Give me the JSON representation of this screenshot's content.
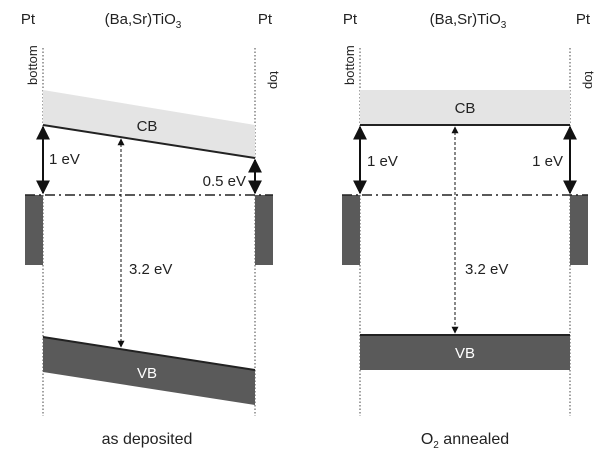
{
  "panels": [
    {
      "left_electrode": "Pt",
      "film": {
        "text": "(Ba,Sr)TiO",
        "sub": "3"
      },
      "right_electrode": "Pt",
      "left_interface": "bottom",
      "right_interface": "top",
      "conduction_band": "CB",
      "valence_band": "VB",
      "left_barrier": "1 eV",
      "right_barrier": "0.5 eV",
      "band_gap": "3.2 eV",
      "caption": {
        "text": "as deposited"
      }
    },
    {
      "left_electrode": "Pt",
      "film": {
        "text": "(Ba,Sr)TiO",
        "sub": "3"
      },
      "right_electrode": "Pt",
      "left_interface": "bottom",
      "right_interface": "top",
      "conduction_band": "CB",
      "valence_band": "VB",
      "left_barrier": "1 eV",
      "right_barrier": "1 eV",
      "band_gap": "3.2 eV",
      "caption": {
        "text": "O",
        "sub": "2",
        "after": " annealed"
      }
    }
  ]
}
